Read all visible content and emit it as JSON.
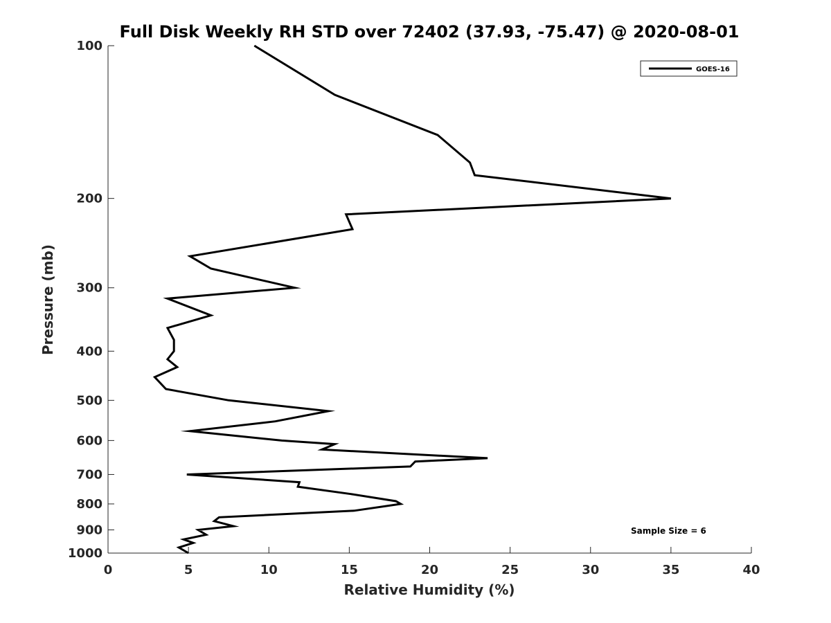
{
  "chart_data": {
    "type": "line",
    "title": "Full Disk Weekly RH STD over 72402 (37.93, -75.47) @ 2020-08-01",
    "xlabel": "Relative Humidity (%)",
    "ylabel": "Pressure (mb)",
    "xlim": [
      0,
      40
    ],
    "ylim": [
      100,
      1000
    ],
    "y_scale": "log",
    "y_reversed": true,
    "x_ticks": [
      0,
      5,
      10,
      15,
      20,
      25,
      30,
      35,
      40
    ],
    "y_ticks": [
      100,
      200,
      300,
      400,
      500,
      600,
      700,
      800,
      900,
      1000
    ],
    "grid": false,
    "legend_position": "top-right",
    "annotation": "Sample Size = 6",
    "series": [
      {
        "name": "GOES-16",
        "color": "#000000",
        "points": [
          [
            9.1,
            100
          ],
          [
            14.1,
            125
          ],
          [
            20.5,
            150
          ],
          [
            22.5,
            170
          ],
          [
            22.8,
            180
          ],
          [
            35.0,
            200
          ],
          [
            14.8,
            215
          ],
          [
            15.2,
            230
          ],
          [
            5.1,
            260
          ],
          [
            6.4,
            275
          ],
          [
            11.6,
            300
          ],
          [
            3.7,
            315
          ],
          [
            6.4,
            340
          ],
          [
            3.7,
            360
          ],
          [
            4.1,
            380
          ],
          [
            4.1,
            400
          ],
          [
            3.7,
            415
          ],
          [
            4.3,
            430
          ],
          [
            2.9,
            450
          ],
          [
            3.6,
            475
          ],
          [
            7.5,
            500
          ],
          [
            13.7,
            525
          ],
          [
            10.4,
            550
          ],
          [
            5.1,
            575
          ],
          [
            10.8,
            600
          ],
          [
            14.1,
            610
          ],
          [
            13.3,
            625
          ],
          [
            23.6,
            650
          ],
          [
            19.1,
            660
          ],
          [
            18.8,
            675
          ],
          [
            4.9,
            700
          ],
          [
            11.9,
            725
          ],
          [
            11.8,
            740
          ],
          [
            15.1,
            765
          ],
          [
            17.9,
            790
          ],
          [
            18.2,
            800
          ],
          [
            15.3,
            825
          ],
          [
            6.9,
            850
          ],
          [
            6.6,
            865
          ],
          [
            7.8,
            885
          ],
          [
            5.6,
            900
          ],
          [
            6.1,
            920
          ],
          [
            4.7,
            940
          ],
          [
            5.3,
            955
          ],
          [
            4.4,
            975
          ],
          [
            5.0,
            1000
          ]
        ]
      }
    ]
  }
}
